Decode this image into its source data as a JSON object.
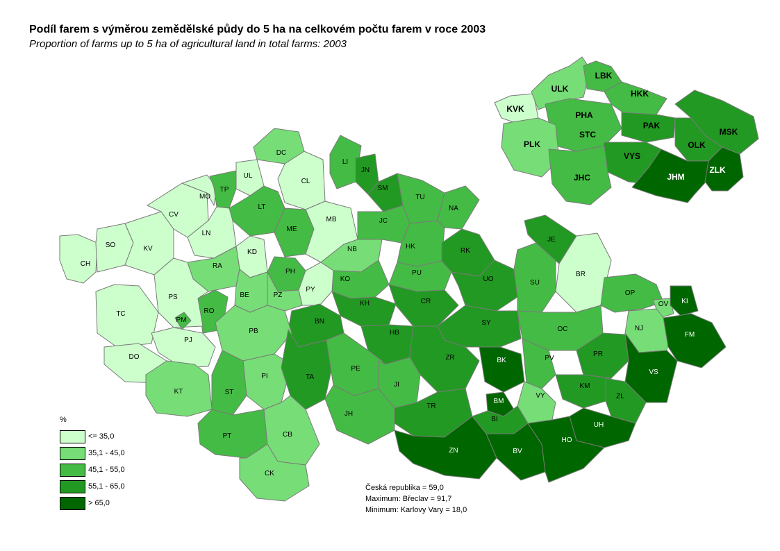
{
  "title": "Podíl farem s výměrou zemědělské půdy do 5 ha na celkovém počtu farem v roce 2003",
  "subtitle": "Proportion of farms up to 5 ha of agricultural land in total farms: 2003",
  "colors": {
    "c1": "#ccffcc",
    "c2": "#77dd77",
    "c3": "#44bb44",
    "c4": "#229922",
    "c5": "#006600",
    "border": "#7a7a7a"
  },
  "legend": {
    "title": "%",
    "items": [
      {
        "label": "<= 35,0",
        "color": "#ccffcc"
      },
      {
        "label": "35,1 - 45,0",
        "color": "#77dd77"
      },
      {
        "label": "45,1 - 55,0",
        "color": "#44bb44"
      },
      {
        "label": "55,1 - 65,0",
        "color": "#229922"
      },
      {
        "label": "> 65,0",
        "color": "#006600"
      }
    ]
  },
  "stats": {
    "line1": "Česká republika = 59,0",
    "line2": "Maximum: Břeclav  = 91,7",
    "line3": "Minimum: Karlovy Vary  = 18,0"
  },
  "districts": [
    {
      "code": "CH",
      "class": 1
    },
    {
      "code": "SO",
      "class": 1
    },
    {
      "code": "KV",
      "class": 1
    },
    {
      "code": "CV",
      "class": 1
    },
    {
      "code": "MO",
      "class": 1
    },
    {
      "code": "UL",
      "class": 1
    },
    {
      "code": "DC",
      "class": 2
    },
    {
      "code": "CL",
      "class": 1
    },
    {
      "code": "TP",
      "class": 3
    },
    {
      "code": "LT",
      "class": 3
    },
    {
      "code": "LN",
      "class": 1
    },
    {
      "code": "ME",
      "class": 3
    },
    {
      "code": "MB",
      "class": 1
    },
    {
      "code": "LI",
      "class": 3
    },
    {
      "code": "JN",
      "class": 4
    },
    {
      "code": "SM",
      "class": 4
    },
    {
      "code": "TU",
      "class": 3
    },
    {
      "code": "NA",
      "class": 3
    },
    {
      "code": "JC",
      "class": 3
    },
    {
      "code": "NB",
      "class": 2
    },
    {
      "code": "KD",
      "class": 1
    },
    {
      "code": "RA",
      "class": 2
    },
    {
      "code": "PH",
      "class": 3
    },
    {
      "code": "HK",
      "class": 3
    },
    {
      "code": "RK",
      "class": 4
    },
    {
      "code": "PU",
      "class": 3
    },
    {
      "code": "KO",
      "class": 3
    },
    {
      "code": "PY",
      "class": 1
    },
    {
      "code": "PZ",
      "class": 2
    },
    {
      "code": "BE",
      "class": 2
    },
    {
      "code": "RO",
      "class": 3
    },
    {
      "code": "PS",
      "class": 1
    },
    {
      "code": "TC",
      "class": 1
    },
    {
      "code": "PM",
      "class": 3
    },
    {
      "code": "PJ",
      "class": 1
    },
    {
      "code": "DO",
      "class": 1
    },
    {
      "code": "KH",
      "class": 4
    },
    {
      "code": "CR",
      "class": 4
    },
    {
      "code": "UO",
      "class": 4
    },
    {
      "code": "SU",
      "class": 3
    },
    {
      "code": "JE",
      "class": 4
    },
    {
      "code": "BR",
      "class": 1
    },
    {
      "code": "OP",
      "class": 3
    },
    {
      "code": "OV",
      "class": 2
    },
    {
      "code": "KI",
      "class": 5
    },
    {
      "code": "NJ",
      "class": 2
    },
    {
      "code": "FM",
      "class": 5
    },
    {
      "code": "BN",
      "class": 4
    },
    {
      "code": "HB",
      "class": 4
    },
    {
      "code": "SY",
      "class": 4
    },
    {
      "code": "OC",
      "class": 3
    },
    {
      "code": "PB",
      "class": 2
    },
    {
      "code": "ZR",
      "class": 4
    },
    {
      "code": "BK",
      "class": 5
    },
    {
      "code": "PV",
      "class": 3
    },
    {
      "code": "PR",
      "class": 4
    },
    {
      "code": "VS",
      "class": 5
    },
    {
      "code": "KT",
      "class": 2
    },
    {
      "code": "PI",
      "class": 2
    },
    {
      "code": "TA",
      "class": 4
    },
    {
      "code": "PE",
      "class": 3
    },
    {
      "code": "JI",
      "class": 3
    },
    {
      "code": "KM",
      "class": 4
    },
    {
      "code": "ZL",
      "class": 4
    },
    {
      "code": "ST",
      "class": 3
    },
    {
      "code": "BM",
      "class": 5
    },
    {
      "code": "VY",
      "class": 2
    },
    {
      "code": "TR",
      "class": 4
    },
    {
      "code": "JH",
      "class": 3
    },
    {
      "code": "BI",
      "class": 4
    },
    {
      "code": "UH",
      "class": 5
    },
    {
      "code": "PT",
      "class": 3
    },
    {
      "code": "CB",
      "class": 2
    },
    {
      "code": "ZN",
      "class": 5
    },
    {
      "code": "BV",
      "class": 5
    },
    {
      "code": "HO",
      "class": 5
    },
    {
      "code": "CK",
      "class": 2
    }
  ],
  "regions": [
    {
      "code": "KVK",
      "class": 1
    },
    {
      "code": "ULK",
      "class": 2
    },
    {
      "code": "LBK",
      "class": 3
    },
    {
      "code": "HKK",
      "class": 3
    },
    {
      "code": "PHA",
      "class": 3
    },
    {
      "code": "STC",
      "class": 3
    },
    {
      "code": "PAK",
      "class": 4
    },
    {
      "code": "MSK",
      "class": 4
    },
    {
      "code": "PLK",
      "class": 2
    },
    {
      "code": "VYS",
      "class": 4
    },
    {
      "code": "OLK",
      "class": 4
    },
    {
      "code": "JHC",
      "class": 3
    },
    {
      "code": "JHM",
      "class": 5
    },
    {
      "code": "ZLK",
      "class": 5
    }
  ]
}
